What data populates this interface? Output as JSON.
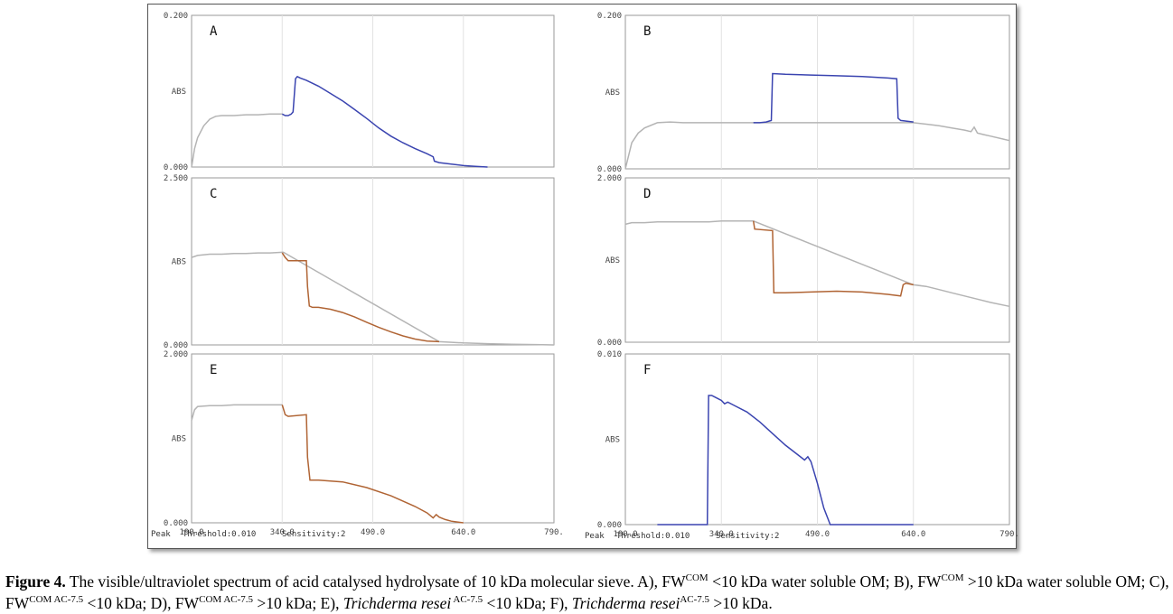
{
  "caption": {
    "label": "Figure 4.",
    "text1": " The visible/ultraviolet spectrum of acid catalysed hydrolysate of 10 kDa molecular sieve.  A), FW",
    "sup1": "COM",
    "text2": " <10 kDa water soluble OM; B), FW",
    "sup2": "COM",
    "text3": " >10 kDa water soluble OM; C), FW",
    "sup3": "COM AC-7.5",
    "text4": " <10 kDa; D), FW",
    "sup4": "COM AC-7.5",
    "text5": " >10 kDa; E), ",
    "italic1": "Trichderma resei",
    "sup5": " AC-7.5",
    "text6": " <10 kDa; F), ",
    "italic2": "Trichderma resei",
    "sup6": "AC-7.5",
    "text7": " >10 kDa."
  },
  "footers": [
    {
      "peak": "Peak",
      "threshold": "Threshold:0.010",
      "sensitivity": "Sensitivity:2"
    },
    {
      "peak": "Peak",
      "threshold": "Threshold:0.010",
      "sensitivity": "Sensitivity:2"
    }
  ],
  "chart_data": [
    {
      "type": "line",
      "panel": "A",
      "ylabel": "ABS",
      "ylim": [
        0,
        0.2
      ],
      "yticks": [
        "0.200",
        "0.000"
      ],
      "xlim": [
        190,
        790
      ],
      "series": [
        {
          "color": "#b4b4b4",
          "x": [
            190,
            195,
            200,
            210,
            220,
            230,
            240,
            260,
            280,
            300,
            320,
            340
          ],
          "y": [
            0.0,
            0.025,
            0.04,
            0.056,
            0.065,
            0.069,
            0.07,
            0.07,
            0.071,
            0.071,
            0.072,
            0.072
          ]
        },
        {
          "color": "#3a44b0",
          "x": [
            340,
            345,
            350,
            355,
            358,
            362,
            365,
            370,
            380,
            400,
            420,
            440,
            460,
            480,
            500,
            520,
            540,
            560,
            580,
            590,
            592,
            600,
            620,
            640,
            660,
            680
          ],
          "y": [
            0.072,
            0.07,
            0.07,
            0.072,
            0.075,
            0.12,
            0.123,
            0.121,
            0.118,
            0.11,
            0.1,
            0.09,
            0.078,
            0.066,
            0.053,
            0.042,
            0.033,
            0.025,
            0.018,
            0.014,
            0.008,
            0.006,
            0.004,
            0.002,
            0.001,
            0.0
          ]
        }
      ]
    },
    {
      "type": "line",
      "panel": "B",
      "ylabel": "ABS",
      "ylim": [
        0,
        0.2
      ],
      "yticks": [
        "0.200",
        "0.000"
      ],
      "xlim": [
        190,
        790
      ],
      "series": [
        {
          "color": "#b4b4b4",
          "x": [
            190,
            200,
            210,
            220,
            240,
            260,
            280,
            300,
            320,
            340,
            360,
            380,
            390,
            640,
            660,
            680,
            700,
            720,
            730,
            735,
            740,
            750,
            760,
            780,
            790
          ],
          "y": [
            0.0,
            0.035,
            0.048,
            0.055,
            0.062,
            0.063,
            0.062,
            0.062,
            0.062,
            0.062,
            0.062,
            0.062,
            0.062,
            0.062,
            0.06,
            0.058,
            0.055,
            0.052,
            0.05,
            0.056,
            0.048,
            0.046,
            0.044,
            0.04,
            0.038
          ]
        },
        {
          "color": "#3a44b0",
          "x": [
            390,
            400,
            410,
            418,
            420,
            440,
            480,
            520,
            560,
            600,
            614,
            616,
            620,
            640
          ],
          "y": [
            0.062,
            0.062,
            0.063,
            0.065,
            0.128,
            0.127,
            0.126,
            0.125,
            0.124,
            0.122,
            0.121,
            0.068,
            0.065,
            0.063
          ]
        }
      ]
    },
    {
      "type": "line",
      "panel": "C",
      "ylabel": "ABS",
      "ylim": [
        0,
        2.5
      ],
      "yticks": [
        "2.500",
        "0.000"
      ],
      "xlim": [
        190,
        790
      ],
      "series": [
        {
          "color": "#b4b4b4",
          "x": [
            190,
            200,
            220,
            240,
            260,
            280,
            300,
            320,
            340,
            342,
            600,
            640,
            680,
            720,
            760,
            790
          ],
          "y": [
            1.35,
            1.38,
            1.4,
            1.4,
            1.41,
            1.41,
            1.42,
            1.42,
            1.43,
            1.43,
            0.05,
            0.03,
            0.02,
            0.01,
            0.005,
            0.0
          ]
        },
        {
          "color": "#b06434",
          "x": [
            340,
            345,
            350,
            380,
            382,
            385,
            390,
            400,
            420,
            440,
            460,
            480,
            500,
            520,
            540,
            560,
            580,
            600
          ],
          "y": [
            1.42,
            1.35,
            1.3,
            1.3,
            0.9,
            0.6,
            0.58,
            0.58,
            0.55,
            0.5,
            0.43,
            0.35,
            0.27,
            0.2,
            0.14,
            0.09,
            0.06,
            0.05
          ]
        }
      ]
    },
    {
      "type": "line",
      "panel": "D",
      "ylabel": "ABS",
      "ylim": [
        0,
        2.0
      ],
      "yticks": [
        "2.000",
        "0.000"
      ],
      "xlim": [
        190,
        790
      ],
      "series": [
        {
          "color": "#b4b4b4",
          "x": [
            190,
            200,
            220,
            240,
            260,
            280,
            300,
            320,
            340,
            360,
            380,
            390,
            640,
            660,
            680,
            700,
            720,
            740,
            760,
            790
          ],
          "y": [
            1.48,
            1.5,
            1.5,
            1.51,
            1.51,
            1.51,
            1.51,
            1.51,
            1.52,
            1.52,
            1.52,
            1.52,
            0.72,
            0.7,
            0.66,
            0.62,
            0.58,
            0.54,
            0.5,
            0.45
          ]
        },
        {
          "color": "#b06434",
          "x": [
            390,
            392,
            420,
            422,
            440,
            480,
            520,
            560,
            600,
            620,
            624,
            628,
            640
          ],
          "y": [
            1.52,
            1.42,
            1.4,
            0.62,
            0.62,
            0.63,
            0.64,
            0.63,
            0.6,
            0.58,
            0.72,
            0.74,
            0.72
          ]
        }
      ]
    },
    {
      "type": "line",
      "panel": "E",
      "ylabel": "ABS",
      "ylim": [
        0,
        2.0
      ],
      "yticks": [
        "2.000",
        "0.000"
      ],
      "xlim": [
        190,
        790
      ],
      "series": [
        {
          "color": "#b4b4b4",
          "x": [
            190,
            195,
            200,
            220,
            240,
            260,
            280,
            300,
            320,
            340
          ],
          "y": [
            1.25,
            1.38,
            1.42,
            1.43,
            1.43,
            1.44,
            1.44,
            1.44,
            1.44,
            1.44
          ]
        },
        {
          "color": "#b06434",
          "x": [
            340,
            345,
            350,
            380,
            382,
            386,
            400,
            440,
            480,
            520,
            560,
            580,
            590,
            595,
            600,
            610,
            620,
            640
          ],
          "y": [
            1.44,
            1.32,
            1.3,
            1.32,
            0.8,
            0.52,
            0.52,
            0.5,
            0.43,
            0.33,
            0.2,
            0.12,
            0.06,
            0.1,
            0.07,
            0.04,
            0.02,
            0.0
          ]
        }
      ]
    },
    {
      "type": "line",
      "panel": "F",
      "ylabel": "ABS",
      "ylim": [
        0,
        0.01
      ],
      "yticks": [
        "0.010",
        "0.000"
      ],
      "xlim": [
        190,
        790
      ],
      "series": [
        {
          "color": "#3a44b0",
          "x": [
            240,
            260,
            280,
            300,
            318,
            320,
            325,
            330,
            340,
            345,
            350,
            360,
            380,
            400,
            420,
            440,
            460,
            470,
            475,
            480,
            490,
            500,
            510,
            520,
            540,
            580,
            640
          ],
          "y": [
            0.0,
            0.0,
            0.0,
            0.0,
            0.0,
            0.0078,
            0.0078,
            0.0077,
            0.0075,
            0.0073,
            0.0074,
            0.0072,
            0.0068,
            0.0062,
            0.0055,
            0.0048,
            0.0042,
            0.0039,
            0.0041,
            0.0038,
            0.0025,
            0.001,
            0.0,
            0.0,
            0.0,
            0.0,
            0.0
          ]
        }
      ]
    }
  ],
  "xaxis_bottom": {
    "ticks": [
      "190.0",
      "340.0",
      "490.0",
      "640.0",
      "790."
    ]
  }
}
